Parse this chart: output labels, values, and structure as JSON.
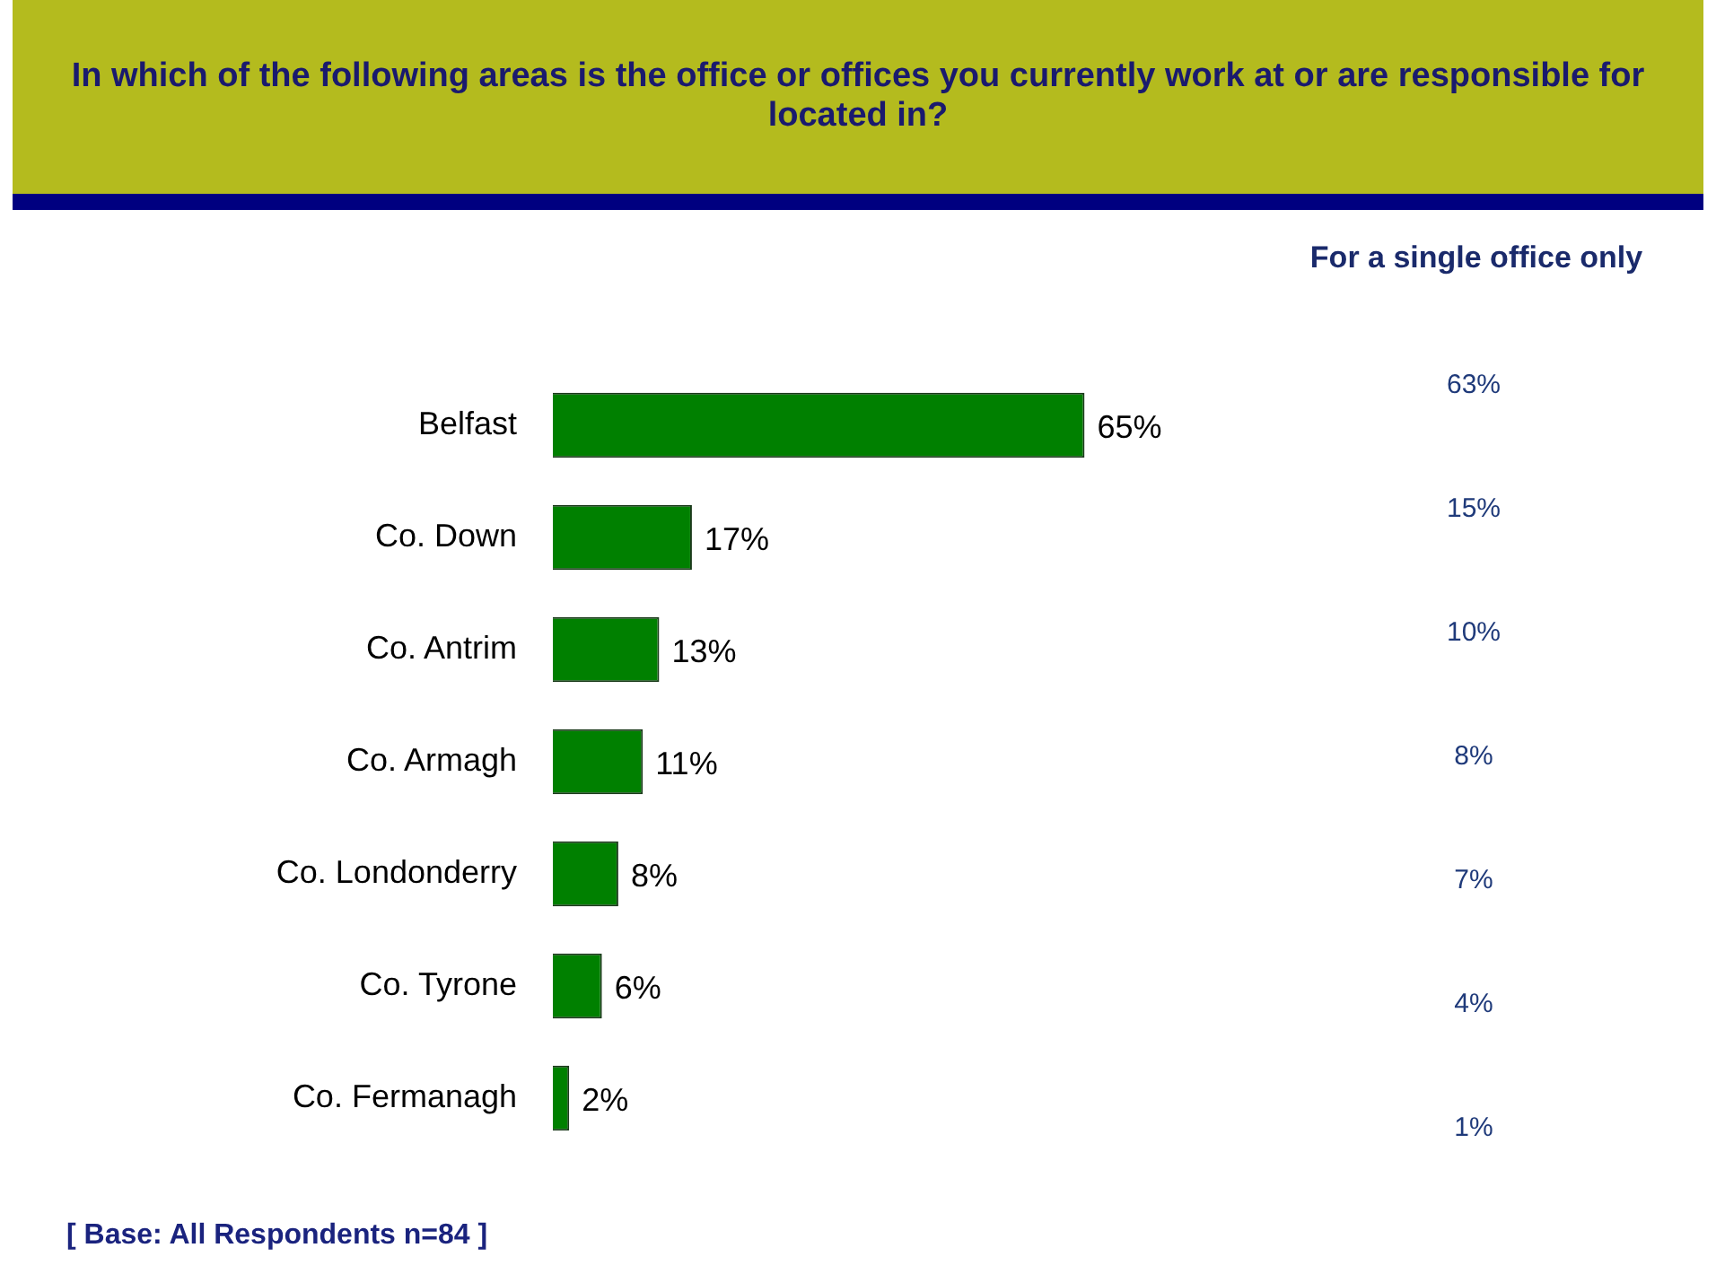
{
  "chart_data": [
    {
      "type": "bar",
      "orientation": "horizontal",
      "title": "In which of the following areas is the office or offices you currently work at or are responsible for located in?",
      "categories": [
        "Belfast",
        "Co. Down",
        "Co. Antrim",
        "Co. Armagh",
        "Co. Londonderry",
        "Co. Tyrone",
        "Co. Fermanagh"
      ],
      "values": [
        65,
        17,
        13,
        11,
        8,
        6,
        2
      ],
      "value_labels": [
        "65%",
        "17%",
        "13%",
        "11%",
        "8%",
        "6%",
        "2%"
      ],
      "color": "#008000",
      "tick_labels": "y",
      "legend": false,
      "annotations": [
        "[ Base:  All Respondents n=84 ]"
      ]
    },
    {
      "type": "other",
      "title": "For a single office only",
      "values": [
        63,
        15,
        10,
        8,
        7,
        4,
        1
      ],
      "value_labels": [
        "63%",
        "15%",
        "10%",
        "8%",
        "7%",
        "4%",
        "1%"
      ]
    }
  ]
}
